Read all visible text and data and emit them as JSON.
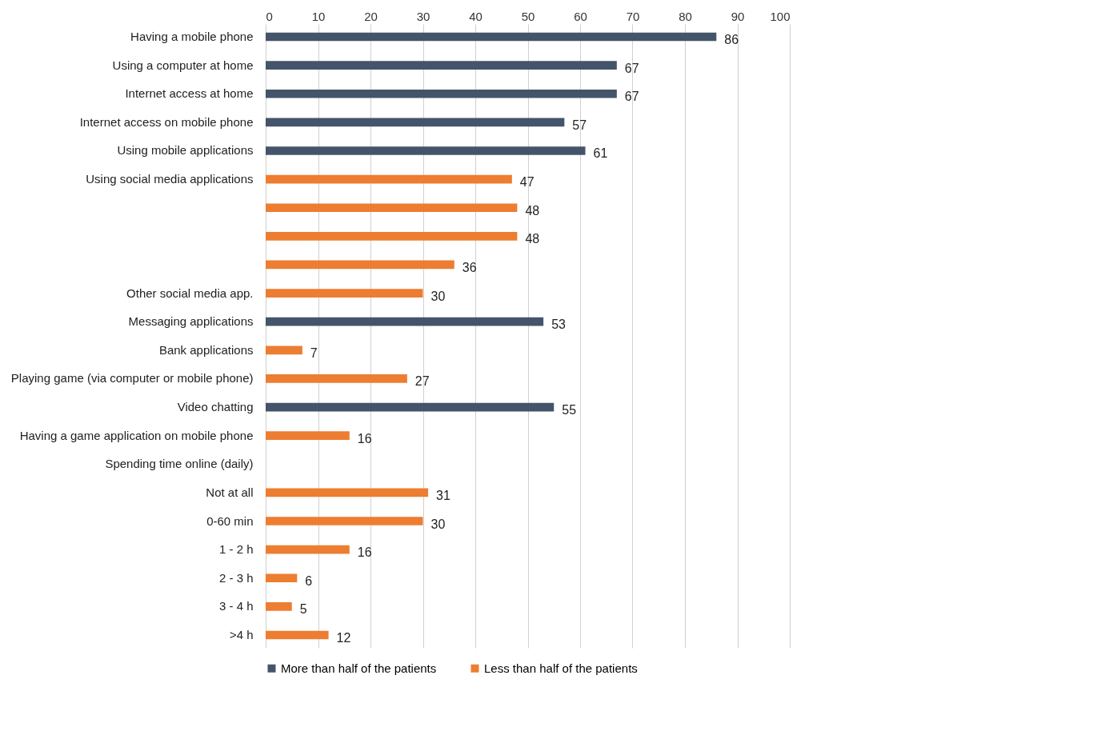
{
  "chart_data": {
    "type": "bar",
    "orientation": "horizontal",
    "categories": [
      "Having a mobile phone",
      "Using a computer at home",
      "Internet access at home",
      "Internet access on mobile phone",
      "Using mobile applications",
      "Using social media applications",
      null,
      null,
      null,
      "Other social media app.",
      "Messaging applications",
      "Bank applications",
      "Playing game (via computer or mobile phone)",
      "Video chatting",
      "Having a game application on mobile phone",
      "Spending time online (daily)",
      "Not at all",
      "0-60 min",
      "1 - 2 h",
      "2 - 3 h",
      "3 - 4 h",
      ">4 h"
    ],
    "series": [
      {
        "name": "More than half of the patients",
        "color": "#44546a",
        "values": [
          86,
          67,
          67,
          57,
          61,
          null,
          null,
          null,
          null,
          null,
          53,
          null,
          null,
          55,
          null,
          null,
          null,
          null,
          null,
          null,
          null,
          null
        ]
      },
      {
        "name": "Less than half of the patients",
        "color": "#ed7d31",
        "values": [
          null,
          null,
          null,
          null,
          null,
          47,
          48,
          48,
          36,
          30,
          null,
          7,
          27,
          null,
          16,
          null,
          31,
          30,
          16,
          6,
          5,
          12
        ]
      }
    ],
    "xlim": [
      0,
      100
    ],
    "xticks": [
      0,
      10,
      20,
      30,
      40,
      50,
      60,
      70,
      80,
      90,
      100
    ],
    "grid": "x",
    "legend": "bottom",
    "data_labels": true
  }
}
